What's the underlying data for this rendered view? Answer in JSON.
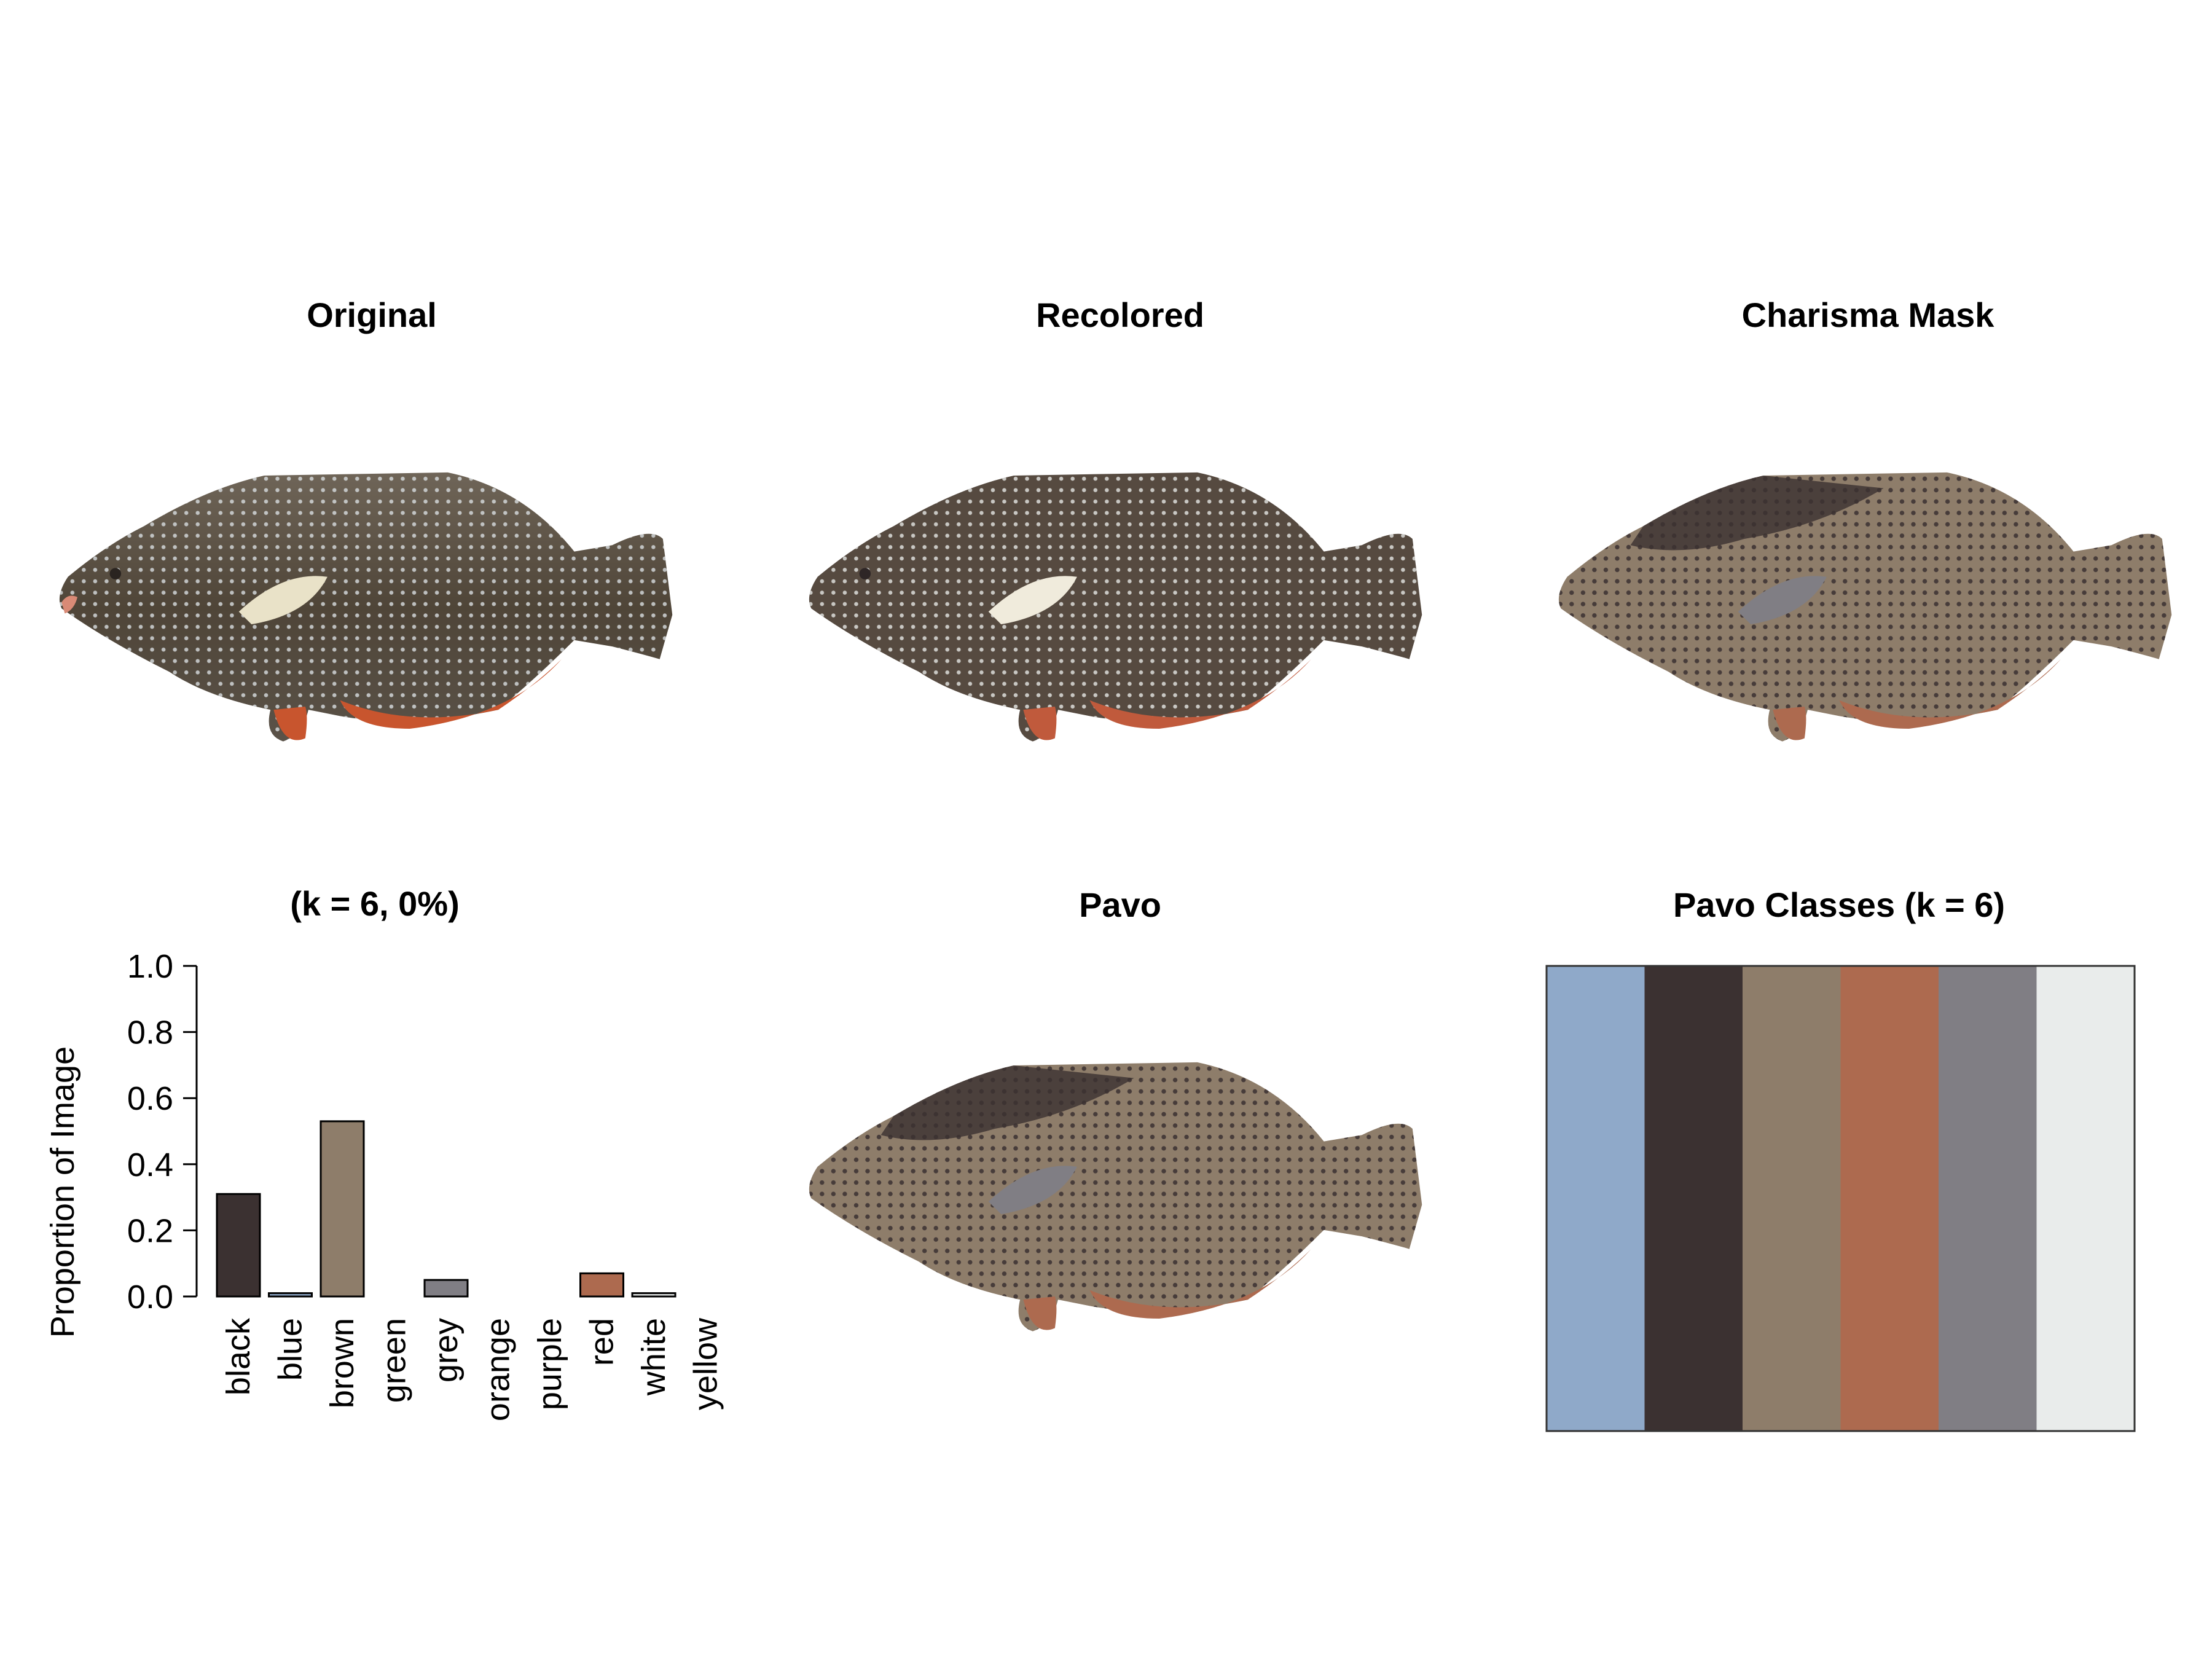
{
  "panels": {
    "original": {
      "title": "Original"
    },
    "recolored": {
      "title": "Recolored"
    },
    "charisma_mask": {
      "title": "Charisma Mask"
    },
    "pavo": {
      "title": "Pavo"
    },
    "pavo_classes": {
      "title": "Pavo Classes (k = 6)",
      "swatches": [
        "#8fa9c9",
        "#3b3131",
        "#8e7d6a",
        "#ad6a4f",
        "#807e84",
        "#e9eceb"
      ]
    }
  },
  "chart_data": {
    "type": "bar",
    "title": "(k = 6, 0%)",
    "ylabel": "Proportion of Image",
    "xlabel": "",
    "ylim": [
      0,
      1
    ],
    "yticks": [
      "0.0",
      "0.2",
      "0.4",
      "0.6",
      "0.8",
      "1.0"
    ],
    "categories": [
      "black",
      "blue",
      "brown",
      "green",
      "grey",
      "orange",
      "purple",
      "red",
      "white",
      "yellow"
    ],
    "values": [
      0.31,
      0.01,
      0.53,
      0,
      0.05,
      0,
      0,
      0.07,
      0.01,
      0
    ],
    "colors": [
      "#3b3131",
      "#8fa9c9",
      "#8e7d6a",
      "#5fa35f",
      "#807e84",
      "#e08a3c",
      "#8a5fa3",
      "#ad6a4f",
      "#e9eceb",
      "#e6d35a"
    ],
    "grid": false,
    "legend": "none"
  }
}
